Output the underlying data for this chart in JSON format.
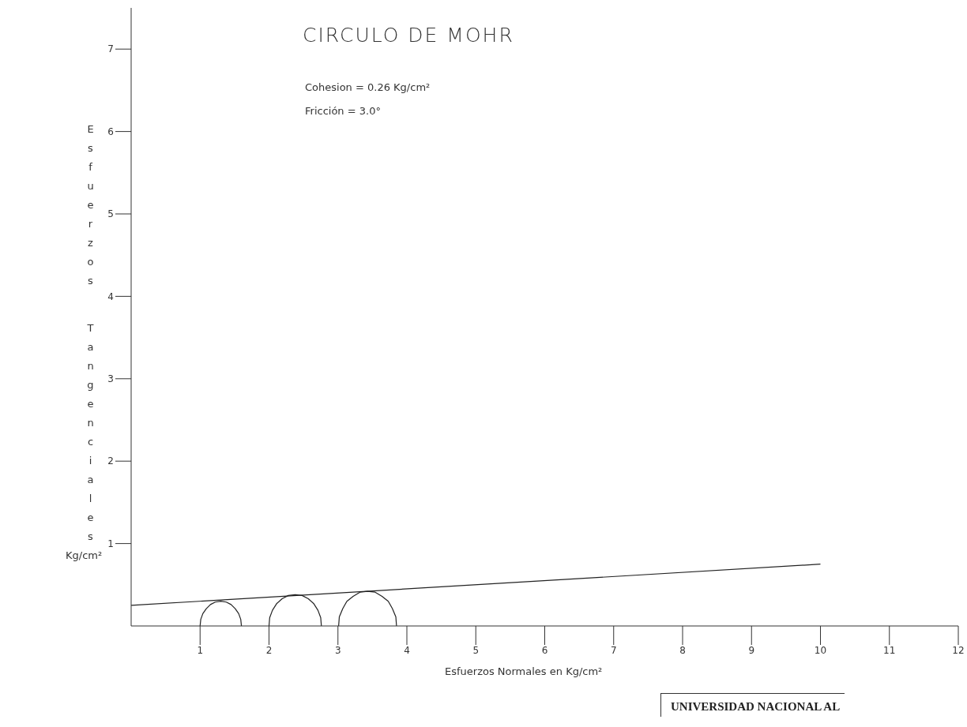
{
  "chart_data": {
    "type": "line",
    "title": "CIRCULO DE MOHR",
    "xlabel": "Esfuerzos Normales en Kg/cm²",
    "ylabel": "Esfuerzos Tangenciales Kg/cm²",
    "annotations": [
      "Cohesion = 0.26 Kg/cm²",
      "Fricción = 3.0°",
      "UNIVERSIDAD NACIONAL AL"
    ],
    "xlim": [
      0,
      12
    ],
    "xticks": [
      1,
      2,
      3,
      4,
      5,
      6,
      7,
      8,
      9,
      10,
      11,
      12
    ],
    "ylim": [
      0,
      7.5
    ],
    "yticks": [
      1,
      2,
      3,
      4,
      5,
      6,
      7
    ],
    "marker": "none",
    "line_style": "solid",
    "series": [
      {
        "color": "#222222",
        "x": [
          0,
          10
        ],
        "values": [
          0.25,
          0.75
        ]
      },
      {
        "color": "#222222",
        "x": [
          1.0,
          1.01,
          1.04,
          1.09,
          1.15,
          1.22,
          1.3,
          1.38,
          1.45,
          1.51,
          1.56,
          1.59,
          1.6
        ],
        "values": [
          0,
          0.08,
          0.15,
          0.21,
          0.26,
          0.29,
          0.3,
          0.29,
          0.26,
          0.21,
          0.15,
          0.08,
          0
        ]
      },
      {
        "color": "#222222",
        "x": [
          2.0,
          2.01,
          2.05,
          2.11,
          2.19,
          2.28,
          2.38,
          2.48,
          2.57,
          2.65,
          2.71,
          2.75,
          2.76
        ],
        "values": [
          0,
          0.1,
          0.19,
          0.27,
          0.33,
          0.37,
          0.38,
          0.37,
          0.33,
          0.27,
          0.19,
          0.1,
          0
        ]
      },
      {
        "color": "#222222",
        "x": [
          3.01,
          3.02,
          3.07,
          3.13,
          3.22,
          3.32,
          3.43,
          3.54,
          3.64,
          3.73,
          3.79,
          3.84,
          3.85
        ],
        "values": [
          0,
          0.11,
          0.21,
          0.3,
          0.36,
          0.41,
          0.42,
          0.41,
          0.36,
          0.3,
          0.21,
          0.11,
          0
        ]
      }
    ]
  }
}
